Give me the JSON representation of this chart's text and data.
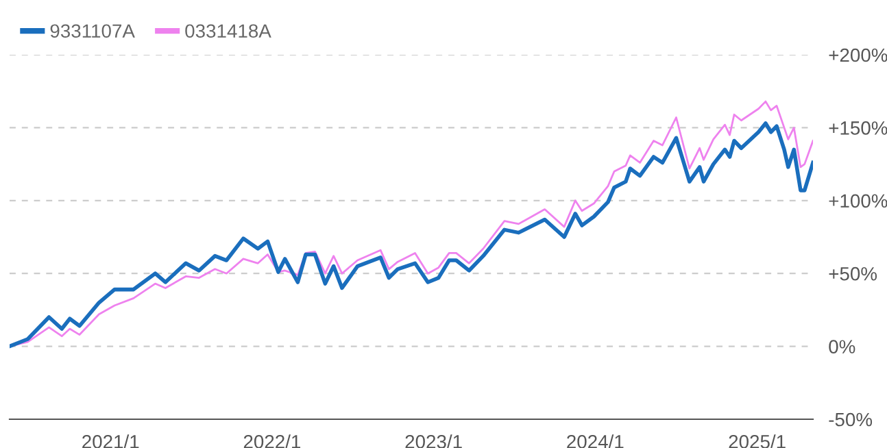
{
  "chart_data": {
    "type": "line",
    "x": [
      "2020-05-18",
      "2020-06-28",
      "2020-08-15",
      "2020-09-13",
      "2020-10-01",
      "2020-10-23",
      "2020-12-06",
      "2021-01-10",
      "2021-02-22",
      "2021-04-12",
      "2021-05-05",
      "2021-06-20",
      "2021-07-20",
      "2021-08-25",
      "2021-09-20",
      "2021-10-28",
      "2021-11-30",
      "2021-12-22",
      "2022-01-15",
      "2022-01-30",
      "2022-02-28",
      "2022-03-18",
      "2022-04-08",
      "2022-05-01",
      "2022-05-20",
      "2022-06-08",
      "2022-07-13",
      "2022-09-03",
      "2022-09-22",
      "2022-10-12",
      "2022-11-20",
      "2022-12-19",
      "2023-01-12",
      "2023-02-05",
      "2023-02-21",
      "2023-03-22",
      "2023-04-23",
      "2023-06-10",
      "2023-07-12",
      "2023-09-09",
      "2023-10-23",
      "2023-11-17",
      "2023-12-02",
      "2023-12-29",
      "2024-01-30",
      "2024-02-13",
      "2024-03-10",
      "2024-03-20",
      "2024-04-11",
      "2024-05-12",
      "2024-06-01",
      "2024-07-02",
      "2024-08-01",
      "2024-08-24",
      "2024-09-02",
      "2024-09-24",
      "2024-10-20",
      "2024-10-31",
      "2024-11-10",
      "2024-11-26",
      "2025-01-04",
      "2025-01-20",
      "2025-02-01",
      "2025-02-14",
      "2025-03-03",
      "2025-03-12",
      "2025-03-25",
      "2025-04-09",
      "2025-04-18",
      "2025-05-07"
    ],
    "series": [
      {
        "name": "9331107A",
        "color": "#1a6ebd",
        "values": [
          0,
          5,
          20,
          12,
          19,
          14,
          30,
          39,
          39,
          50,
          44,
          57,
          52,
          62,
          59,
          74,
          67,
          72,
          51,
          60,
          44,
          63,
          63,
          43,
          55,
          40,
          55,
          61,
          47,
          53,
          57,
          44,
          47,
          59,
          59,
          52,
          62,
          80,
          78,
          87,
          75,
          91,
          83,
          89,
          99,
          109,
          113,
          122,
          117,
          130,
          126,
          143,
          113,
          123,
          113,
          125,
          135,
          130,
          141,
          136,
          147,
          153,
          147,
          151,
          135,
          123,
          135,
          107,
          107,
          126
        ]
      },
      {
        "name": "0331418A",
        "color": "#ee82ee",
        "values": [
          0,
          3,
          13,
          7,
          12,
          8,
          22,
          28,
          33,
          43,
          40,
          48,
          47,
          53,
          50,
          60,
          57,
          63,
          51,
          52,
          49,
          64,
          65,
          50,
          62,
          50,
          59,
          66,
          53,
          58,
          64,
          50,
          54,
          64,
          64,
          57,
          67,
          86,
          84,
          94,
          82,
          100,
          93,
          98,
          110,
          120,
          124,
          131,
          126,
          141,
          138,
          157,
          122,
          136,
          128,
          142,
          152,
          145,
          159,
          155,
          163,
          168,
          162,
          165,
          150,
          142,
          150,
          123,
          125,
          141
        ]
      }
    ],
    "xlim": [
      "2020-05-18",
      "2025-05-07"
    ],
    "xticks": [
      {
        "value": "2021-01-01",
        "label": "2021/1"
      },
      {
        "value": "2022-01-01",
        "label": "2022/1"
      },
      {
        "value": "2023-01-01",
        "label": "2023/1"
      },
      {
        "value": "2024-01-01",
        "label": "2024/1"
      },
      {
        "value": "2025-01-01",
        "label": "2025/1"
      }
    ],
    "ylim": [
      -50,
      200
    ],
    "yticks": [
      {
        "value": -50,
        "label": "-50%"
      },
      {
        "value": 0,
        "label": "0%"
      },
      {
        "value": 50,
        "label": "+50%"
      },
      {
        "value": 100,
        "label": "+100%"
      },
      {
        "value": 150,
        "label": "+150%"
      },
      {
        "value": 200,
        "label": "+200%"
      }
    ],
    "grid": "y",
    "legend": "top left",
    "line_style": "solid",
    "marker": "none"
  }
}
